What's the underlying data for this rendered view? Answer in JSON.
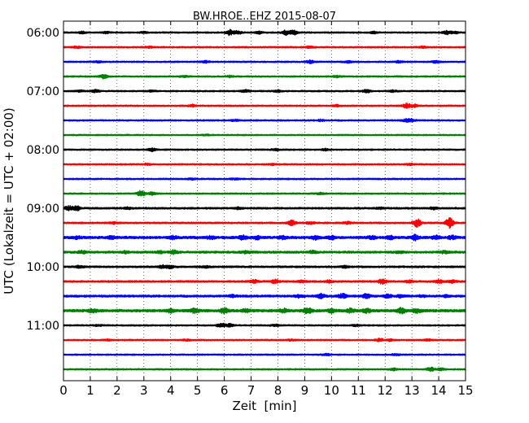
{
  "chart_data": {
    "type": "line",
    "subtype": "helicorder",
    "title": "BW.HROE..EHZ 2015-08-07",
    "xlabel": "Zeit  [min]",
    "ylabel": "UTC (Lokalzeit = UTC + 02:00)",
    "xlim": [
      0,
      15
    ],
    "x_ticks": [
      "0",
      "1",
      "2",
      "3",
      "4",
      "5",
      "6",
      "7",
      "8",
      "9",
      "10",
      "11",
      "12",
      "13",
      "14",
      "15"
    ],
    "y_tick_labels": [
      "06:00",
      "07:00",
      "08:00",
      "09:00",
      "10:00",
      "11:00"
    ],
    "y_tick_rows": [
      0,
      4,
      8,
      12,
      16,
      20
    ],
    "grid": "vertical dotted",
    "row_minutes": 15,
    "color_cycle": [
      "#000000",
      "#ff0000",
      "#0000ff",
      "#008000"
    ],
    "rows": [
      {
        "start": "06:00",
        "color": "#000000",
        "noise": 0.9,
        "events": [
          [
            0.7,
            1.1
          ],
          [
            1.6,
            0.9
          ],
          [
            3.0,
            0.8
          ],
          [
            6.2,
            3.2
          ],
          [
            6.5,
            2.0
          ],
          [
            7.3,
            1.2
          ],
          [
            8.3,
            3.0
          ],
          [
            8.6,
            2.5
          ],
          [
            11.6,
            1.0
          ],
          [
            14.3,
            2.0
          ],
          [
            14.6,
            1.4
          ]
        ]
      },
      {
        "start": "06:15",
        "color": "#ff0000",
        "noise": 0.9,
        "events": [
          [
            0.5,
            1.0
          ],
          [
            3.2,
            0.8
          ],
          [
            9.2,
            0.9
          ],
          [
            13.4,
            0.9
          ]
        ]
      },
      {
        "start": "06:30",
        "color": "#0000ff",
        "noise": 0.9,
        "events": [
          [
            1.3,
            1.0
          ],
          [
            5.3,
            1.0
          ],
          [
            9.2,
            1.6
          ],
          [
            10.6,
            1.0
          ],
          [
            12.5,
            1.0
          ],
          [
            13.9,
            1.2
          ]
        ]
      },
      {
        "start": "06:45",
        "color": "#008000",
        "noise": 0.9,
        "events": [
          [
            1.5,
            2.2
          ],
          [
            4.5,
            0.7
          ],
          [
            6.2,
            0.9
          ],
          [
            10.2,
            1.0
          ]
        ]
      },
      {
        "start": "07:00",
        "color": "#000000",
        "noise": 0.9,
        "events": [
          [
            0.6,
            1.0
          ],
          [
            1.2,
            1.6
          ],
          [
            3.3,
            0.9
          ],
          [
            6.8,
            1.6
          ],
          [
            8.0,
            1.2
          ],
          [
            11.3,
            2.0
          ],
          [
            12.3,
            1.0
          ]
        ]
      },
      {
        "start": "07:15",
        "color": "#ff0000",
        "noise": 0.9,
        "events": [
          [
            4.8,
            1.2
          ],
          [
            10.2,
            1.0
          ],
          [
            12.8,
            2.4
          ],
          [
            13.1,
            1.8
          ]
        ]
      },
      {
        "start": "07:30",
        "color": "#0000ff",
        "noise": 0.9,
        "events": [
          [
            6.4,
            0.9
          ],
          [
            9.6,
            0.9
          ],
          [
            12.8,
            1.6
          ],
          [
            13.0,
            1.2
          ]
        ]
      },
      {
        "start": "07:45",
        "color": "#008000",
        "noise": 0.85,
        "events": [
          [
            5.3,
            0.8
          ]
        ]
      },
      {
        "start": "08:00",
        "color": "#000000",
        "noise": 0.9,
        "events": [
          [
            3.3,
            1.8
          ],
          [
            7.9,
            1.0
          ],
          [
            9.8,
            1.0
          ]
        ]
      },
      {
        "start": "08:15",
        "color": "#ff0000",
        "noise": 0.9,
        "events": [
          [
            3.1,
            0.9
          ],
          [
            7.8,
            0.8
          ],
          [
            12.9,
            0.9
          ]
        ]
      },
      {
        "start": "08:30",
        "color": "#0000ff",
        "noise": 0.9,
        "events": [
          [
            4.8,
            0.8
          ],
          [
            6.4,
            0.8
          ]
        ]
      },
      {
        "start": "08:45",
        "color": "#008000",
        "noise": 0.9,
        "events": [
          [
            2.9,
            3.4
          ],
          [
            3.3,
            1.6
          ],
          [
            9.6,
            1.0
          ]
        ]
      },
      {
        "start": "09:00",
        "color": "#000000",
        "noise": 1.1,
        "events": [
          [
            0.2,
            2.4
          ],
          [
            0.5,
            2.2
          ],
          [
            2.4,
            1.0
          ],
          [
            6.5,
            1.0
          ],
          [
            11.8,
            1.0
          ],
          [
            13.8,
            1.0
          ]
        ]
      },
      {
        "start": "09:15",
        "color": "#ff0000",
        "noise": 1.0,
        "events": [
          [
            1.9,
            1.0
          ],
          [
            8.5,
            2.8
          ],
          [
            9.2,
            1.4
          ],
          [
            10.6,
            1.2
          ],
          [
            13.2,
            4.4
          ],
          [
            14.4,
            5.8
          ]
        ]
      },
      {
        "start": "09:30",
        "color": "#0000ff",
        "noise": 1.5,
        "events": [
          [
            0.5,
            1.4
          ],
          [
            1.8,
            1.4
          ],
          [
            4.1,
            1.8
          ],
          [
            5.5,
            1.6
          ],
          [
            6.7,
            2.2
          ],
          [
            7.2,
            1.8
          ],
          [
            8.2,
            1.6
          ],
          [
            9.4,
            1.8
          ],
          [
            10.0,
            1.8
          ],
          [
            11.5,
            1.6
          ],
          [
            12.2,
            1.6
          ],
          [
            13.1,
            3.0
          ],
          [
            13.9,
            2.0
          ],
          [
            14.5,
            1.8
          ]
        ]
      },
      {
        "start": "09:45",
        "color": "#008000",
        "noise": 1.3,
        "events": [
          [
            0.7,
            1.4
          ],
          [
            2.3,
            1.0
          ],
          [
            3.6,
            1.2
          ],
          [
            4.1,
            2.0
          ],
          [
            6.8,
            1.4
          ],
          [
            9.3,
            1.4
          ],
          [
            12.5,
            1.2
          ],
          [
            14.2,
            1.2
          ]
        ]
      },
      {
        "start": "10:00",
        "color": "#000000",
        "noise": 1.1,
        "events": [
          [
            0.6,
            1.3
          ],
          [
            3.7,
            1.6
          ],
          [
            4.0,
            2.0
          ],
          [
            5.3,
            1.1
          ],
          [
            10.5,
            1.0
          ]
        ]
      },
      {
        "start": "10:15",
        "color": "#ff0000",
        "noise": 1.1,
        "events": [
          [
            7.1,
            1.8
          ],
          [
            7.9,
            2.0
          ],
          [
            8.9,
            1.4
          ],
          [
            9.9,
            1.2
          ],
          [
            11.9,
            2.6
          ],
          [
            12.9,
            1.4
          ],
          [
            14.0,
            1.8
          ],
          [
            14.5,
            1.6
          ]
        ]
      },
      {
        "start": "10:30",
        "color": "#0000ff",
        "noise": 1.3,
        "events": [
          [
            6.3,
            1.0
          ],
          [
            8.8,
            1.6
          ],
          [
            9.6,
            2.4
          ],
          [
            10.4,
            2.6
          ],
          [
            11.3,
            2.4
          ],
          [
            12.1,
            1.8
          ],
          [
            12.6,
            1.6
          ],
          [
            13.4,
            1.2
          ],
          [
            14.3,
            1.0
          ]
        ]
      },
      {
        "start": "10:45",
        "color": "#008000",
        "noise": 1.6,
        "events": [
          [
            1.1,
            1.6
          ],
          [
            4.0,
            2.0
          ],
          [
            4.9,
            2.2
          ],
          [
            6.0,
            2.8
          ],
          [
            6.8,
            1.4
          ],
          [
            8.2,
            2.2
          ],
          [
            9.1,
            3.6
          ],
          [
            10.0,
            1.8
          ],
          [
            10.7,
            2.0
          ],
          [
            11.3,
            2.2
          ],
          [
            12.6,
            3.0
          ],
          [
            13.2,
            1.8
          ]
        ]
      },
      {
        "start": "11:00",
        "color": "#000000",
        "noise": 0.9,
        "events": [
          [
            1.3,
            0.8
          ],
          [
            5.9,
            2.4
          ],
          [
            6.2,
            1.6
          ],
          [
            7.9,
            1.0
          ],
          [
            10.9,
            0.9
          ]
        ]
      },
      {
        "start": "11:15",
        "color": "#ff0000",
        "noise": 0.9,
        "events": [
          [
            1.6,
            0.8
          ],
          [
            4.6,
            0.8
          ],
          [
            8.5,
            0.8
          ],
          [
            11.8,
            1.6
          ],
          [
            12.2,
            1.1
          ],
          [
            13.6,
            0.9
          ]
        ]
      },
      {
        "start": "11:30",
        "color": "#0000ff",
        "noise": 0.85,
        "events": [
          [
            9.8,
            1.0
          ],
          [
            12.4,
            1.0
          ]
        ]
      },
      {
        "start": "11:45",
        "color": "#008000",
        "noise": 0.9,
        "events": [
          [
            12.3,
            1.2
          ],
          [
            13.7,
            2.2
          ],
          [
            14.1,
            1.2
          ]
        ]
      }
    ]
  }
}
